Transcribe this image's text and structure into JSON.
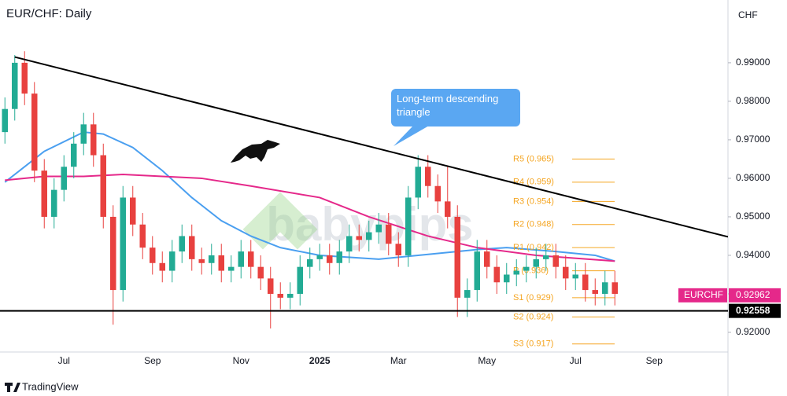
{
  "chart_data": {
    "type": "candlestick",
    "title": "EUR/CHF: Daily",
    "currency": "CHF",
    "watermark": "babypips",
    "brand": "TradingView",
    "annotation": "Long-term descending triangle",
    "categories": [
      null,
      null,
      null,
      null,
      null,
      null,
      "Jul",
      null,
      null,
      null,
      null,
      null,
      null,
      null,
      null,
      "Sep",
      null,
      null,
      null,
      null,
      null,
      null,
      null,
      null,
      "Nov",
      null,
      null,
      null,
      null,
      null,
      null,
      null,
      "2025",
      null,
      null,
      null,
      null,
      null,
      null,
      null,
      "Mar",
      null,
      null,
      null,
      null,
      null,
      null,
      null,
      null,
      "May",
      null,
      null,
      null,
      null,
      null,
      null,
      null,
      null,
      "Jul",
      null,
      null,
      null,
      null,
      null,
      null,
      null,
      "Sep",
      null,
      null,
      null,
      null,
      null,
      null,
      null
    ],
    "open": [
      0.972,
      0.978,
      0.99,
      0.982,
      0.962,
      0.95,
      0.957,
      0.963,
      0.969,
      0.974,
      0.966,
      0.95,
      0.931,
      0.955,
      0.948,
      0.942,
      0.938,
      0.936,
      0.941,
      0.945,
      0.939,
      0.938,
      0.94,
      0.936,
      0.937,
      0.941,
      0.937,
      0.934,
      0.93,
      0.929,
      0.93,
      0.937,
      0.939,
      0.94,
      0.938,
      0.941,
      0.945,
      0.944,
      0.946,
      0.948,
      0.943,
      0.94,
      0.955,
      0.963,
      0.958,
      0.954,
      0.95,
      0.929,
      0.931,
      0.941,
      0.937,
      0.933,
      0.935,
      0.936,
      0.937,
      0.939,
      0.94,
      0.937,
      0.934,
      0.935,
      0.931,
      0.93,
      0.933,
      null,
      null,
      null,
      null,
      null,
      null,
      null,
      null,
      null,
      null,
      null
    ],
    "high": [
      0.981,
      0.992,
      0.993,
      0.985,
      0.965,
      0.96,
      0.966,
      0.972,
      0.977,
      0.977,
      0.969,
      0.953,
      0.958,
      0.958,
      0.951,
      0.945,
      0.941,
      0.944,
      0.948,
      0.948,
      0.942,
      0.943,
      0.943,
      0.94,
      0.944,
      0.944,
      0.94,
      0.937,
      0.933,
      0.933,
      0.94,
      0.942,
      0.943,
      0.943,
      0.944,
      0.948,
      0.948,
      0.949,
      0.951,
      0.951,
      0.946,
      0.958,
      0.966,
      0.966,
      0.961,
      0.963,
      0.953,
      0.934,
      0.944,
      0.944,
      0.94,
      0.938,
      0.939,
      0.94,
      0.942,
      0.943,
      0.943,
      0.94,
      0.938,
      0.938,
      0.934,
      0.936,
      0.936,
      null,
      null,
      null,
      null,
      null,
      null,
      null,
      null,
      null,
      null,
      null
    ],
    "low": [
      0.969,
      0.975,
      0.979,
      0.959,
      0.947,
      0.947,
      0.954,
      0.96,
      0.966,
      0.963,
      0.947,
      0.922,
      0.928,
      0.945,
      0.939,
      0.935,
      0.933,
      0.933,
      0.938,
      0.936,
      0.935,
      0.935,
      0.933,
      0.933,
      0.934,
      0.934,
      0.931,
      0.921,
      0.926,
      0.926,
      0.927,
      0.934,
      0.936,
      0.935,
      0.935,
      0.938,
      0.941,
      0.941,
      0.943,
      0.94,
      0.937,
      0.937,
      0.952,
      0.955,
      0.951,
      0.947,
      0.924,
      0.924,
      0.928,
      0.934,
      0.93,
      0.93,
      0.932,
      0.933,
      0.934,
      0.936,
      0.934,
      0.931,
      0.931,
      0.928,
      0.927,
      0.927,
      0.927,
      null,
      null,
      null,
      null,
      null,
      null,
      null,
      null,
      null,
      null,
      null
    ],
    "close": [
      0.978,
      0.99,
      0.982,
      0.962,
      0.95,
      0.957,
      0.963,
      0.969,
      0.974,
      0.966,
      0.95,
      0.931,
      0.955,
      0.948,
      0.942,
      0.938,
      0.936,
      0.941,
      0.945,
      0.939,
      0.938,
      0.94,
      0.936,
      0.937,
      0.941,
      0.937,
      0.934,
      0.93,
      0.929,
      0.93,
      0.937,
      0.939,
      0.94,
      0.938,
      0.941,
      0.945,
      0.944,
      0.946,
      0.948,
      0.943,
      0.94,
      0.955,
      0.963,
      0.958,
      0.954,
      0.95,
      0.929,
      0.931,
      0.941,
      0.937,
      0.933,
      0.935,
      0.936,
      0.937,
      0.939,
      0.94,
      0.937,
      0.934,
      0.935,
      0.931,
      0.93,
      0.933,
      0.93,
      null,
      null,
      null,
      null,
      null,
      null,
      null,
      null,
      null,
      null,
      null
    ],
    "up_color": "#22ab94",
    "down_color": "#e8413f",
    "moving_averages": [
      {
        "color": "#4a9ff0",
        "x": [
          0,
          4,
          8,
          10,
          13,
          16,
          19,
          22,
          25,
          28,
          32,
          38,
          42,
          48,
          51,
          56,
          60,
          62
        ],
        "values": [
          0.959,
          0.967,
          0.972,
          0.9715,
          0.968,
          0.962,
          0.955,
          0.949,
          0.945,
          0.942,
          0.94,
          0.939,
          0.94,
          0.9415,
          0.942,
          0.941,
          0.94,
          0.9385
        ]
      },
      {
        "color": "#e5288a",
        "x": [
          0,
          4,
          8,
          12,
          16,
          20,
          25,
          32,
          37,
          43,
          48,
          54,
          62
        ],
        "values": [
          0.9595,
          0.9605,
          0.9605,
          0.961,
          0.9605,
          0.96,
          0.958,
          0.955,
          0.95,
          0.945,
          0.942,
          0.94,
          0.9385
        ]
      }
    ],
    "trendline": {
      "x": [
        1,
        73.5
      ],
      "values": [
        0.9915,
        0.9448
      ]
    },
    "support": {
      "value": 0.92558,
      "label": "0.92558"
    },
    "last_price": {
      "name": "EURCHF",
      "value": 0.92962,
      "label": "0.92962"
    },
    "pivots": [
      {
        "value": 0.965,
        "label": "R5 (0.965)"
      },
      {
        "value": 0.959,
        "label": "R4 (0.959)"
      },
      {
        "value": 0.954,
        "label": "R3 (0.954)"
      },
      {
        "value": 0.948,
        "label": "R2 (0.948)"
      },
      {
        "value": 0.942,
        "label": "R1 (0.942)"
      },
      {
        "value": 0.936,
        "label": "P (0.936)"
      },
      {
        "value": 0.929,
        "label": "S1 (0.929)"
      },
      {
        "value": 0.924,
        "label": "S2 (0.924)"
      },
      {
        "value": 0.917,
        "label": "S3 (0.917)"
      }
    ],
    "pivot_color": "#f5a623",
    "ylim": [
      0.9149,
      1.0063
    ],
    "yticks": [
      {
        "value": 0.92,
        "label": "0.92000"
      },
      {
        "value": 0.93,
        "label": "0.93000"
      },
      {
        "value": 0.94,
        "label": "0.94000"
      },
      {
        "value": 0.95,
        "label": "0.95000"
      },
      {
        "value": 0.96,
        "label": "0.96000"
      },
      {
        "value": 0.97,
        "label": "0.97000"
      },
      {
        "value": 0.98,
        "label": "0.98000"
      },
      {
        "value": 0.99,
        "label": "0.99000"
      }
    ],
    "grid": false
  }
}
